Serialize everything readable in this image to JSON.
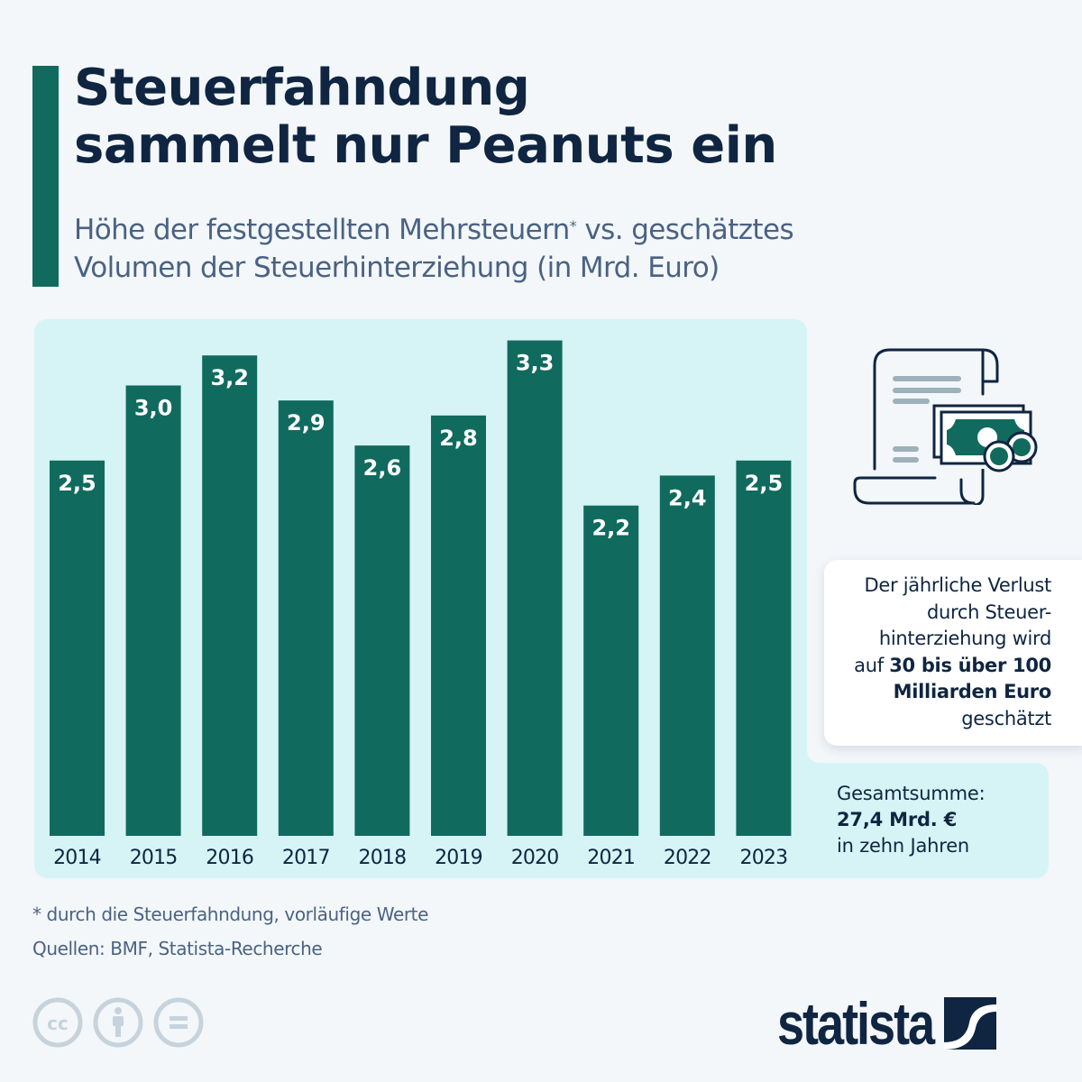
{
  "header": {
    "title_line1": "Steuerfahndung",
    "title_line2": "sammelt nur Peanuts ein",
    "subtitle_part1": "Höhe der festgestellten Mehrsteuern",
    "subtitle_sup": "*",
    "subtitle_part2": " vs. geschätztes",
    "subtitle_line2": "Volumen der Steuerhinterziehung (in Mrd. Euro)"
  },
  "colors": {
    "bar": "#106b5e",
    "panel": "#d6f4f6",
    "background": "#f3f7fa",
    "title": "#0f2541",
    "subtitle": "#4a6283"
  },
  "chart_data": {
    "type": "bar",
    "title": "Steuerfahndung sammelt nur Peanuts ein",
    "subtitle": "Höhe der festgestellten Mehrsteuern* vs. geschätztes Volumen der Steuerhinterziehung (in Mrd. Euro)",
    "xlabel": "",
    "ylabel": "Mrd. Euro",
    "categories": [
      "2014",
      "2015",
      "2016",
      "2017",
      "2018",
      "2019",
      "2020",
      "2021",
      "2022",
      "2023"
    ],
    "values": [
      2.5,
      3.0,
      3.2,
      2.9,
      2.6,
      2.8,
      3.3,
      2.2,
      2.4,
      2.5
    ],
    "value_labels": [
      "2,5",
      "3,0",
      "3,2",
      "2,9",
      "2,6",
      "2,8",
      "3,3",
      "2,2",
      "2,4",
      "2,5"
    ],
    "ylim": [
      0,
      3.3
    ],
    "grid": false,
    "legend": "none"
  },
  "icon": {
    "name": "tax-document-money-icon"
  },
  "info_card": {
    "line1": "Der jährliche Verlust",
    "line2": "durch Steuer-",
    "line3": "hinterziehung wird",
    "line4_prefix": "auf ",
    "line4_bold": "30 bis über 100",
    "line5_bold": "Milliarden Euro",
    "line6": "geschätzt"
  },
  "total": {
    "label": "Gesamtsumme:",
    "value": "27,4 Mrd. €",
    "suffix": "in zehn Jahren"
  },
  "footer": {
    "footnote": "* durch die Steuerfahndung, vorläufige Werte",
    "source": "Quellen: BMF, Statista-Recherche",
    "license_icons": [
      "cc-icon",
      "attribution-icon",
      "no-derivatives-icon"
    ],
    "brand": "statista"
  }
}
